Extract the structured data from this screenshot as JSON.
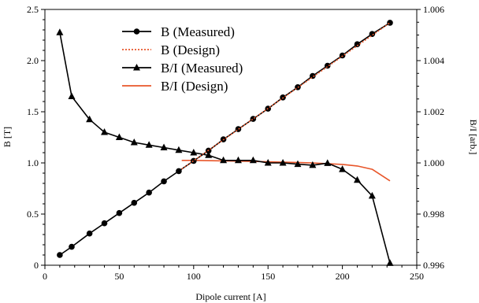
{
  "chart_data": {
    "type": "line",
    "xlabel": "Dipole current [A]",
    "ylabel_left": "B [T]",
    "ylabel_right": "B/I [arb.]",
    "xlim": [
      0,
      250
    ],
    "ylim_left": [
      0,
      2.5
    ],
    "ylim_right": [
      0.996,
      1.006
    ],
    "xticks": [
      "0",
      "50",
      "100",
      "150",
      "200",
      "250"
    ],
    "yticks_left": [
      "0",
      "0.5",
      "1.0",
      "1.5",
      "2.0",
      "2.5"
    ],
    "yticks_right": [
      "0.996",
      "0.998",
      "1.000",
      "1.002",
      "1.004",
      "1.006"
    ],
    "grid": false,
    "legend_position": "top-center",
    "series": [
      {
        "name": "B (Measured)",
        "axis": "left",
        "marker": "circle",
        "line": "solid",
        "color": "#000000",
        "x": [
          10,
          18,
          30,
          40,
          50,
          60,
          70,
          80,
          90,
          100,
          110,
          120,
          130,
          140,
          150,
          160,
          170,
          180,
          190,
          200,
          210,
          220,
          232
        ],
        "y": [
          0.1,
          0.18,
          0.31,
          0.41,
          0.51,
          0.61,
          0.71,
          0.82,
          0.92,
          1.02,
          1.12,
          1.23,
          1.33,
          1.43,
          1.53,
          1.64,
          1.74,
          1.85,
          1.95,
          2.05,
          2.16,
          2.26,
          2.37
        ]
      },
      {
        "name": "B (Design)",
        "axis": "left",
        "marker": "none",
        "line": "dotted",
        "color": "#e8562a",
        "x": [
          92,
          232
        ],
        "y": [
          0.94,
          2.37
        ]
      },
      {
        "name": "B/I (Measured)",
        "axis": "right",
        "marker": "triangle",
        "line": "solid",
        "color": "#000000",
        "x": [
          10,
          18,
          30,
          40,
          50,
          60,
          70,
          80,
          90,
          100,
          110,
          120,
          130,
          140,
          150,
          160,
          170,
          180,
          190,
          200,
          210,
          220,
          232
        ],
        "y": [
          1.0051,
          1.0026,
          1.0017,
          1.0012,
          1.001,
          1.0008,
          1.0007,
          1.0006,
          1.0005,
          1.0004,
          1.0003,
          1.0001,
          1.0001,
          1.0001,
          1.0,
          1.0,
          0.99995,
          0.99991,
          0.99999,
          0.99975,
          0.99933,
          0.99871,
          0.99608
        ]
      },
      {
        "name": "B/I (Design)",
        "axis": "right",
        "marker": "none",
        "line": "solid",
        "color": "#e8562a",
        "x": [
          92,
          100,
          120,
          140,
          160,
          180,
          200,
          210,
          220,
          232
        ],
        "y": [
          1.0001,
          1.0001,
          1.00008,
          1.00006,
          1.00003,
          1.0,
          0.99994,
          0.99988,
          0.99975,
          0.9993
        ]
      }
    ]
  }
}
